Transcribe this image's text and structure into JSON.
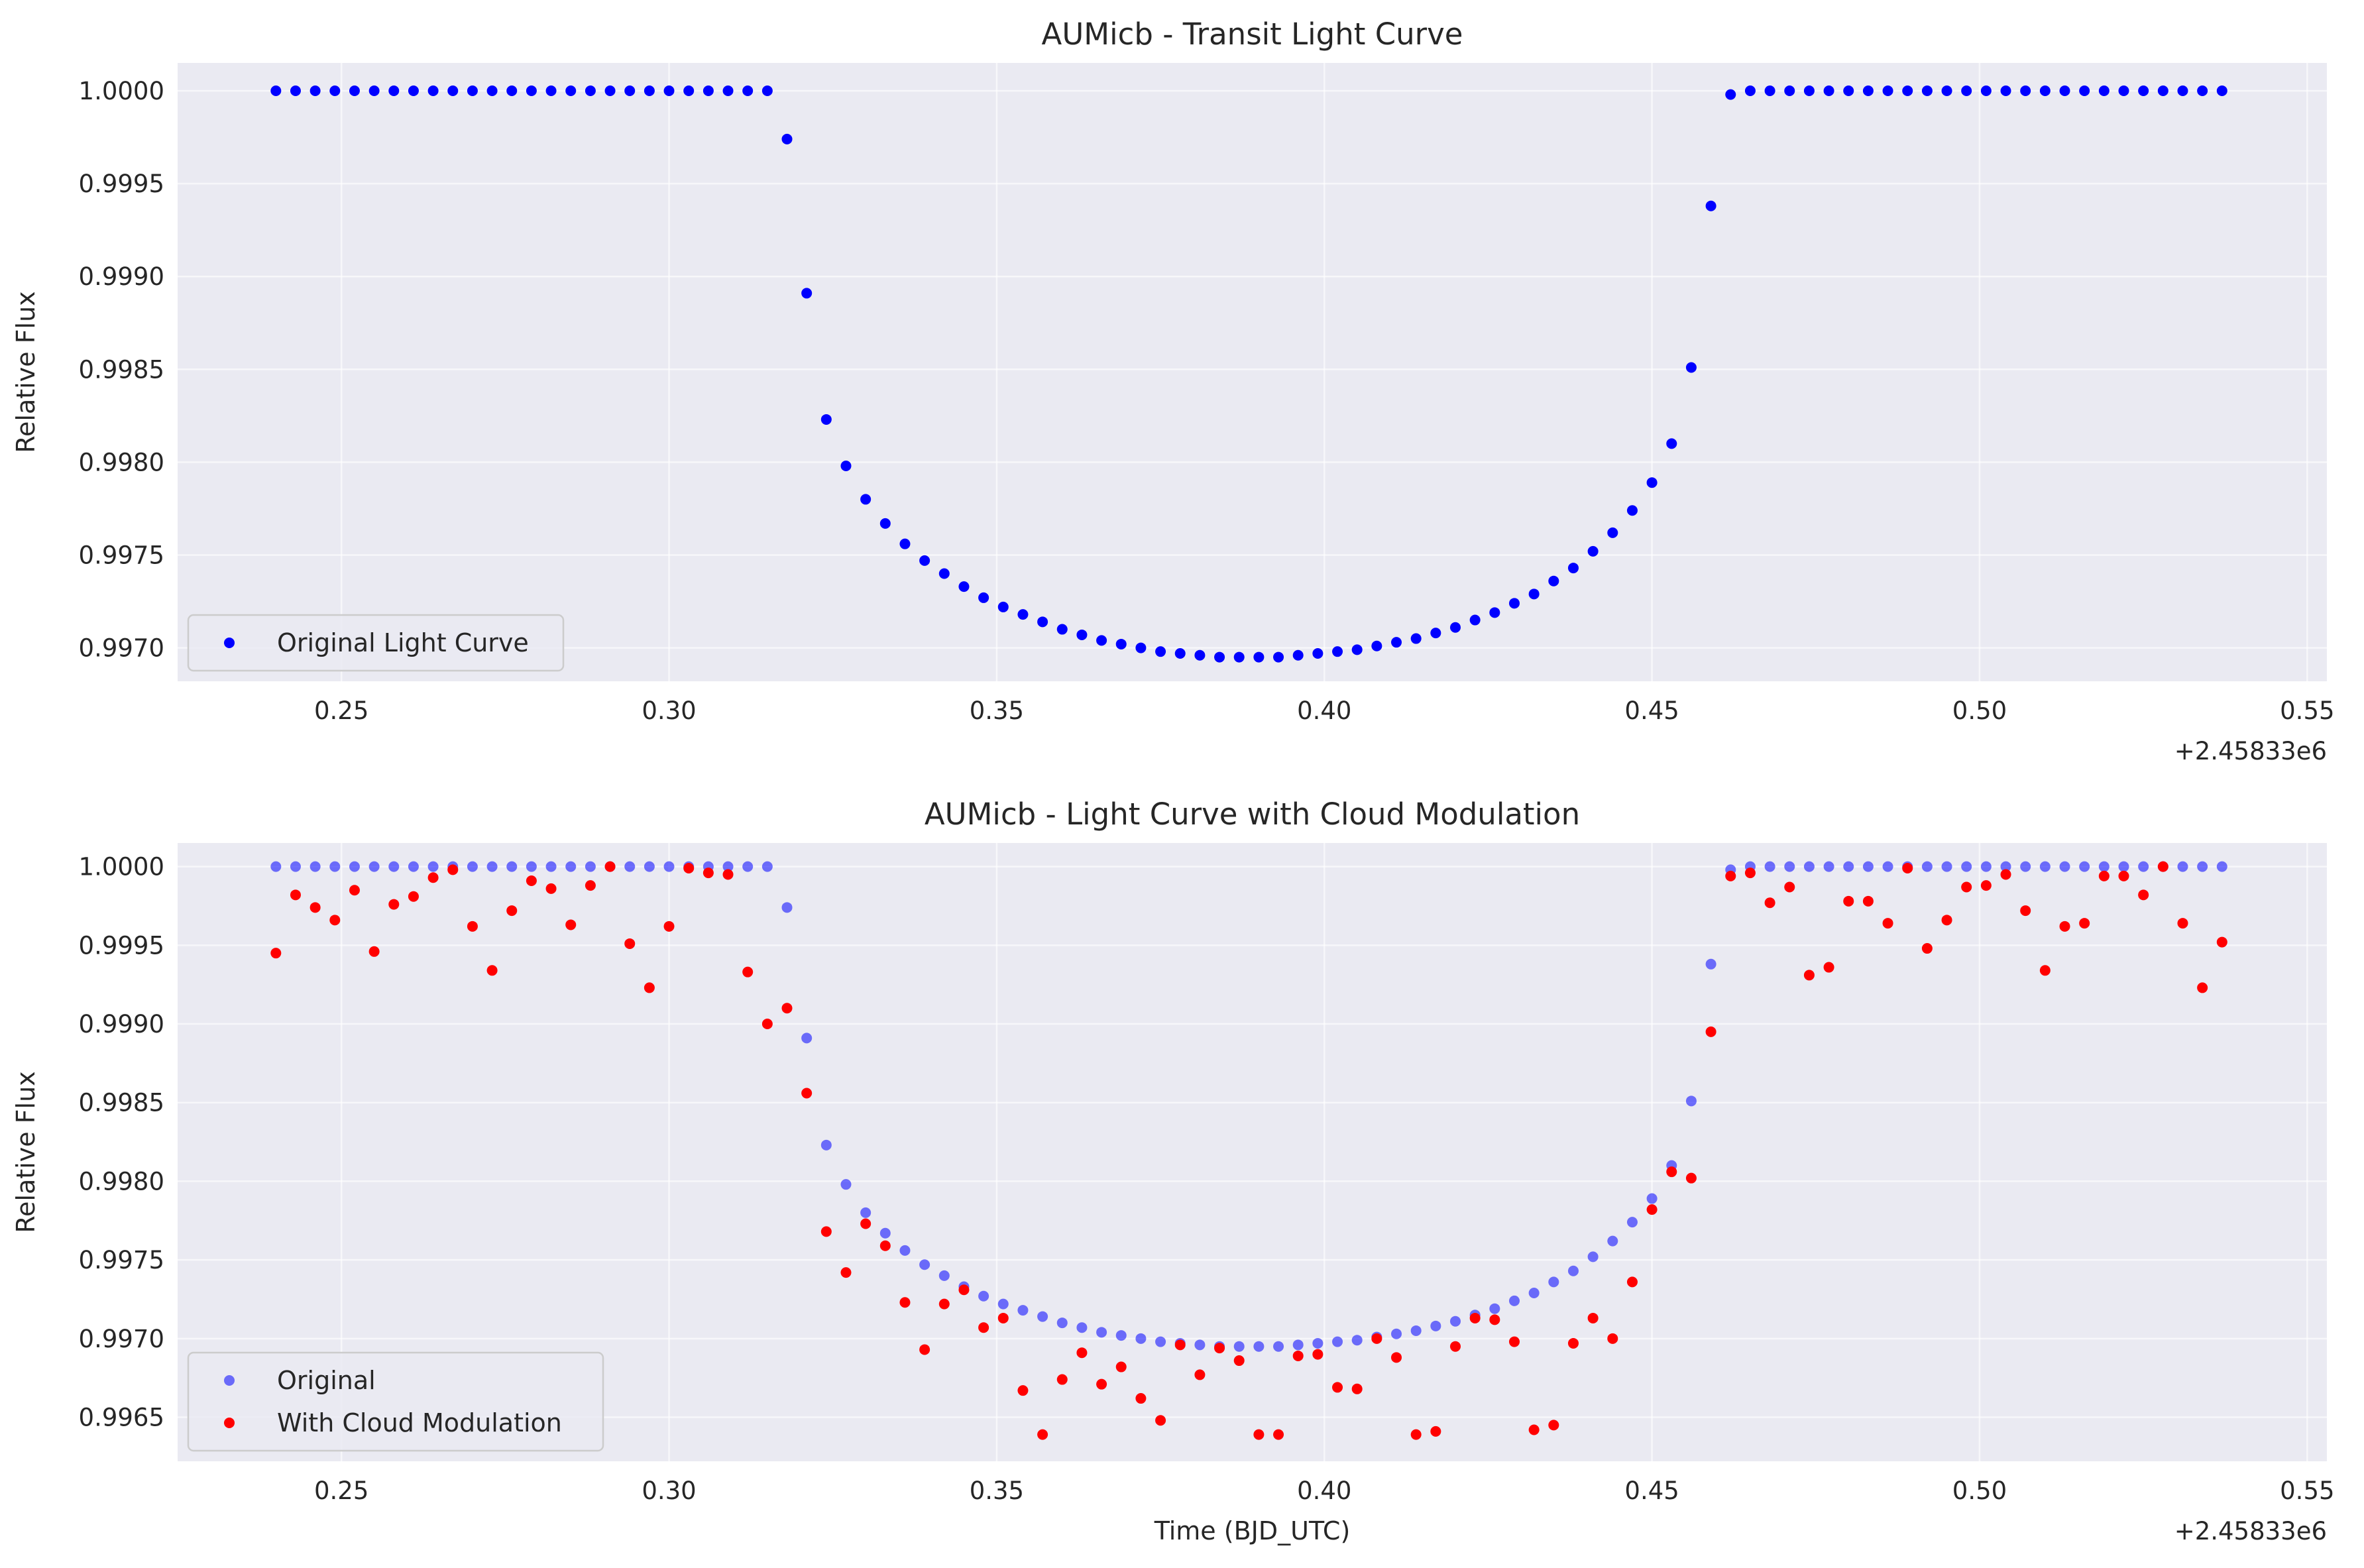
{
  "chart_data": [
    {
      "type": "scatter",
      "title": "AUMicb - Transit Light Curve",
      "xlabel": "",
      "ylabel": "Relative Flux",
      "x_offset_label": "+2.45833e6",
      "xlim": [
        0.225,
        0.553
      ],
      "ylim": [
        0.99682,
        1.00015
      ],
      "x_ticks": [
        0.25,
        0.3,
        0.35,
        0.4,
        0.45,
        0.5,
        0.55
      ],
      "x_tick_labels": [
        "0.25",
        "0.30",
        "0.35",
        "0.40",
        "0.45",
        "0.50",
        "0.55"
      ],
      "y_ticks": [
        0.997,
        0.9975,
        0.998,
        0.9985,
        0.999,
        0.9995,
        1.0
      ],
      "y_tick_labels": [
        "0.9970",
        "0.9975",
        "0.9980",
        "0.9985",
        "0.9990",
        "0.9995",
        "1.0000"
      ],
      "grid": true,
      "legend_position": "lower-left",
      "series": [
        {
          "name": "Original Light Curve",
          "color": "#0000ff",
          "opacity": 1.0,
          "x": [
            0.24,
            0.243,
            0.246,
            0.249,
            0.252,
            0.255,
            0.258,
            0.261,
            0.264,
            0.267,
            0.27,
            0.273,
            0.276,
            0.279,
            0.282,
            0.285,
            0.288,
            0.291,
            0.294,
            0.297,
            0.3,
            0.303,
            0.306,
            0.309,
            0.312,
            0.315,
            0.318,
            0.321,
            0.324,
            0.327,
            0.33,
            0.333,
            0.336,
            0.339,
            0.342,
            0.345,
            0.348,
            0.351,
            0.354,
            0.357,
            0.36,
            0.363,
            0.366,
            0.369,
            0.372,
            0.375,
            0.378,
            0.381,
            0.384,
            0.387,
            0.39,
            0.393,
            0.396,
            0.399,
            0.402,
            0.405,
            0.408,
            0.411,
            0.414,
            0.417,
            0.42,
            0.423,
            0.426,
            0.429,
            0.432,
            0.435,
            0.438,
            0.441,
            0.444,
            0.447,
            0.45,
            0.453,
            0.456,
            0.459,
            0.462,
            0.465,
            0.468,
            0.471,
            0.474,
            0.477,
            0.48,
            0.483,
            0.486,
            0.489,
            0.492,
            0.495,
            0.498,
            0.501,
            0.504,
            0.507,
            0.51,
            0.513,
            0.516,
            0.519,
            0.522,
            0.525,
            0.528,
            0.531,
            0.534,
            0.537
          ],
          "y": [
            1.0,
            1.0,
            1.0,
            1.0,
            1.0,
            1.0,
            1.0,
            1.0,
            1.0,
            1.0,
            1.0,
            1.0,
            1.0,
            1.0,
            1.0,
            1.0,
            1.0,
            1.0,
            1.0,
            1.0,
            1.0,
            1.0,
            1.0,
            1.0,
            1.0,
            1.0,
            0.99974,
            0.99891,
            0.99823,
            0.99798,
            0.9978,
            0.99767,
            0.99756,
            0.99747,
            0.9974,
            0.99733,
            0.99727,
            0.99722,
            0.99718,
            0.99714,
            0.9971,
            0.99707,
            0.99704,
            0.99702,
            0.997,
            0.99698,
            0.99697,
            0.99696,
            0.99695,
            0.99695,
            0.99695,
            0.99695,
            0.99696,
            0.99697,
            0.99698,
            0.99699,
            0.99701,
            0.99703,
            0.99705,
            0.99708,
            0.99711,
            0.99715,
            0.99719,
            0.99724,
            0.99729,
            0.99736,
            0.99743,
            0.99752,
            0.99762,
            0.99774,
            0.99789,
            0.9981,
            0.99851,
            0.99938,
            0.99998,
            1.0,
            1.0,
            1.0,
            1.0,
            1.0,
            1.0,
            1.0,
            1.0,
            1.0,
            1.0,
            1.0,
            1.0,
            1.0,
            1.0,
            1.0,
            1.0,
            1.0,
            1.0,
            1.0,
            1.0,
            1.0,
            1.0,
            1.0,
            1.0,
            1.0
          ]
        }
      ]
    },
    {
      "type": "scatter",
      "title": "AUMicb - Light Curve with Cloud Modulation",
      "xlabel": "Time (BJD_UTC)",
      "ylabel": "Relative Flux",
      "x_offset_label": "+2.45833e6",
      "xlim": [
        0.225,
        0.553
      ],
      "ylim": [
        0.99622,
        1.00015
      ],
      "x_ticks": [
        0.25,
        0.3,
        0.35,
        0.4,
        0.45,
        0.5,
        0.55
      ],
      "x_tick_labels": [
        "0.25",
        "0.30",
        "0.35",
        "0.40",
        "0.45",
        "0.50",
        "0.55"
      ],
      "y_ticks": [
        0.9965,
        0.997,
        0.9975,
        0.998,
        0.9985,
        0.999,
        0.9995,
        1.0
      ],
      "y_tick_labels": [
        "0.9965",
        "0.9970",
        "0.9975",
        "0.9980",
        "0.9985",
        "0.9990",
        "0.9995",
        "1.0000"
      ],
      "grid": true,
      "legend_position": "lower-left",
      "series": [
        {
          "name": "Original",
          "color": "#0000ff",
          "opacity": 0.55,
          "x": [
            0.24,
            0.243,
            0.246,
            0.249,
            0.252,
            0.255,
            0.258,
            0.261,
            0.264,
            0.267,
            0.27,
            0.273,
            0.276,
            0.279,
            0.282,
            0.285,
            0.288,
            0.291,
            0.294,
            0.297,
            0.3,
            0.303,
            0.306,
            0.309,
            0.312,
            0.315,
            0.318,
            0.321,
            0.324,
            0.327,
            0.33,
            0.333,
            0.336,
            0.339,
            0.342,
            0.345,
            0.348,
            0.351,
            0.354,
            0.357,
            0.36,
            0.363,
            0.366,
            0.369,
            0.372,
            0.375,
            0.378,
            0.381,
            0.384,
            0.387,
            0.39,
            0.393,
            0.396,
            0.399,
            0.402,
            0.405,
            0.408,
            0.411,
            0.414,
            0.417,
            0.42,
            0.423,
            0.426,
            0.429,
            0.432,
            0.435,
            0.438,
            0.441,
            0.444,
            0.447,
            0.45,
            0.453,
            0.456,
            0.459,
            0.462,
            0.465,
            0.468,
            0.471,
            0.474,
            0.477,
            0.48,
            0.483,
            0.486,
            0.489,
            0.492,
            0.495,
            0.498,
            0.501,
            0.504,
            0.507,
            0.51,
            0.513,
            0.516,
            0.519,
            0.522,
            0.525,
            0.528,
            0.531,
            0.534,
            0.537
          ],
          "y": [
            1.0,
            1.0,
            1.0,
            1.0,
            1.0,
            1.0,
            1.0,
            1.0,
            1.0,
            1.0,
            1.0,
            1.0,
            1.0,
            1.0,
            1.0,
            1.0,
            1.0,
            1.0,
            1.0,
            1.0,
            1.0,
            1.0,
            1.0,
            1.0,
            1.0,
            1.0,
            0.99974,
            0.99891,
            0.99823,
            0.99798,
            0.9978,
            0.99767,
            0.99756,
            0.99747,
            0.9974,
            0.99733,
            0.99727,
            0.99722,
            0.99718,
            0.99714,
            0.9971,
            0.99707,
            0.99704,
            0.99702,
            0.997,
            0.99698,
            0.99697,
            0.99696,
            0.99695,
            0.99695,
            0.99695,
            0.99695,
            0.99696,
            0.99697,
            0.99698,
            0.99699,
            0.99701,
            0.99703,
            0.99705,
            0.99708,
            0.99711,
            0.99715,
            0.99719,
            0.99724,
            0.99729,
            0.99736,
            0.99743,
            0.99752,
            0.99762,
            0.99774,
            0.99789,
            0.9981,
            0.99851,
            0.99938,
            0.99998,
            1.0,
            1.0,
            1.0,
            1.0,
            1.0,
            1.0,
            1.0,
            1.0,
            1.0,
            1.0,
            1.0,
            1.0,
            1.0,
            1.0,
            1.0,
            1.0,
            1.0,
            1.0,
            1.0,
            1.0,
            1.0,
            1.0,
            1.0,
            1.0,
            1.0
          ]
        },
        {
          "name": "With Cloud Modulation",
          "color": "#ff0000",
          "opacity": 1.0,
          "x": [
            0.24,
            0.243,
            0.246,
            0.249,
            0.252,
            0.255,
            0.258,
            0.261,
            0.264,
            0.267,
            0.27,
            0.273,
            0.276,
            0.279,
            0.282,
            0.285,
            0.288,
            0.291,
            0.294,
            0.297,
            0.3,
            0.303,
            0.306,
            0.309,
            0.312,
            0.315,
            0.318,
            0.321,
            0.324,
            0.327,
            0.33,
            0.333,
            0.336,
            0.339,
            0.342,
            0.345,
            0.348,
            0.351,
            0.354,
            0.357,
            0.36,
            0.363,
            0.366,
            0.369,
            0.372,
            0.375,
            0.378,
            0.381,
            0.384,
            0.387,
            0.39,
            0.393,
            0.396,
            0.399,
            0.402,
            0.405,
            0.408,
            0.411,
            0.414,
            0.417,
            0.42,
            0.423,
            0.426,
            0.429,
            0.432,
            0.435,
            0.438,
            0.441,
            0.444,
            0.447,
            0.45,
            0.453,
            0.456,
            0.459,
            0.462,
            0.465,
            0.468,
            0.471,
            0.474,
            0.477,
            0.48,
            0.483,
            0.486,
            0.489,
            0.492,
            0.495,
            0.498,
            0.501,
            0.504,
            0.507,
            0.51,
            0.513,
            0.516,
            0.519,
            0.522,
            0.525,
            0.528,
            0.531,
            0.534,
            0.537
          ],
          "y": [
            0.99945,
            0.99982,
            0.99974,
            0.99966,
            0.99985,
            0.99946,
            0.99976,
            0.99981,
            0.99993,
            0.99998,
            0.99962,
            0.99934,
            0.99972,
            0.99991,
            0.99986,
            0.99963,
            0.99988,
            1.0,
            0.99951,
            0.99923,
            0.99962,
            0.99999,
            0.99996,
            0.99995,
            0.99933,
            0.999,
            0.9991,
            0.99856,
            0.99768,
            0.99742,
            0.99773,
            0.99759,
            0.99723,
            0.99693,
            0.99722,
            0.99731,
            0.99707,
            0.99713,
            0.99667,
            0.99639,
            0.99674,
            0.99691,
            0.99671,
            0.99682,
            0.99662,
            0.99648,
            0.99696,
            0.99677,
            0.99694,
            0.99686,
            0.99639,
            0.99639,
            0.99689,
            0.9969,
            0.99669,
            0.99668,
            0.997,
            0.99688,
            0.99639,
            0.99641,
            0.99695,
            0.99713,
            0.99712,
            0.99698,
            0.99642,
            0.99645,
            0.99697,
            0.99713,
            0.997,
            0.99736,
            0.99782,
            0.99806,
            0.99802,
            0.99895,
            0.99994,
            0.99996,
            0.99977,
            0.99987,
            0.99931,
            0.99936,
            0.99978,
            0.99978,
            0.99964,
            0.99999,
            0.99948,
            0.99966,
            0.99987,
            0.99988,
            0.99995,
            0.99972,
            0.99934,
            0.99962,
            0.99964,
            0.99994,
            0.99994,
            0.99982,
            1.0,
            0.99964,
            0.99923,
            0.99952
          ]
        }
      ]
    }
  ]
}
